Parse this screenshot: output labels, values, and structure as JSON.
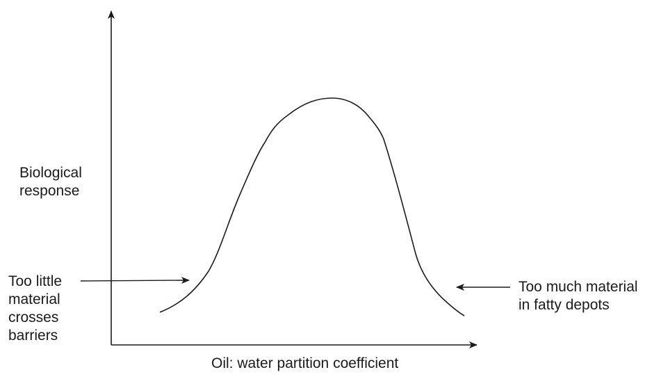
{
  "diagram": {
    "y_axis_label": [
      "Biological",
      "response"
    ],
    "x_axis_label": "Oil: water partition coefficient",
    "left_annotation": [
      "Too little",
      "material",
      "crosses",
      "barriers"
    ],
    "right_annotation": [
      "Too much material",
      "in fatty depots"
    ],
    "colors": {
      "ink": "#1a1a1a",
      "background": "#ffffff"
    }
  }
}
